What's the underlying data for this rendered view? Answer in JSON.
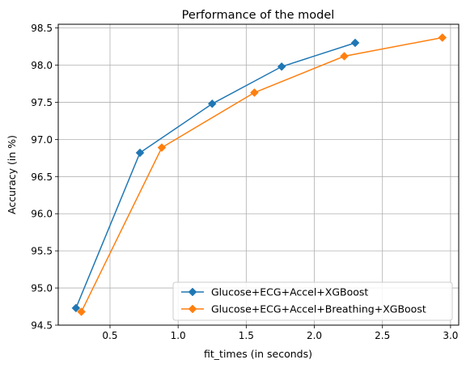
{
  "chart_data": {
    "type": "line",
    "title": "Performance of the model",
    "xlabel": "fit_times (in seconds)",
    "ylabel": "Accuracy (in %)",
    "xlim": [
      0.12,
      3.06
    ],
    "ylim": [
      94.5,
      98.55
    ],
    "xticks": [
      0.5,
      1.0,
      1.5,
      2.0,
      2.5,
      3.0
    ],
    "xtick_labels": [
      "0.5",
      "1.0",
      "1.5",
      "2.0",
      "2.5",
      "3.0"
    ],
    "yticks": [
      94.5,
      95.0,
      95.5,
      96.0,
      96.5,
      97.0,
      97.5,
      98.0,
      98.5
    ],
    "ytick_labels": [
      "94.5",
      "95.0",
      "95.5",
      "96.0",
      "96.5",
      "97.0",
      "97.5",
      "98.0",
      "98.5"
    ],
    "grid": true,
    "legend_position": "lower-right",
    "series": [
      {
        "name": "Glucose+ECG+Accel+XGBoost",
        "color": "#1f77b4",
        "marker": "diamond",
        "x": [
          0.25,
          0.72,
          1.25,
          1.76,
          2.3
        ],
        "y": [
          94.73,
          96.82,
          97.48,
          97.98,
          98.3
        ]
      },
      {
        "name": "Glucose+ECG+Accel+Breathing+XGBoost",
        "color": "#ff7f0e",
        "marker": "diamond",
        "x": [
          0.29,
          0.88,
          1.56,
          2.22,
          2.94
        ],
        "y": [
          94.68,
          96.89,
          97.63,
          98.12,
          98.37
        ]
      }
    ]
  }
}
